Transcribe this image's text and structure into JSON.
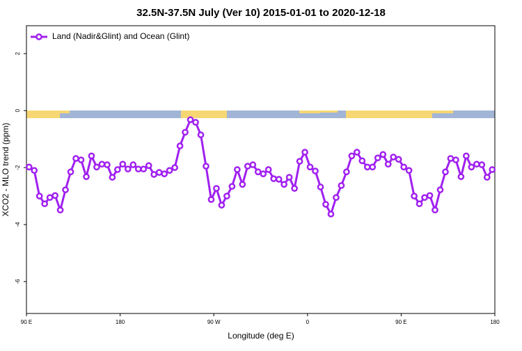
{
  "chart_data": {
    "type": "line",
    "title": "32.5N-37.5N July (Ver 10)   2015-01-01 to 2020-12-18",
    "xlabel": "Longitude (deg E)",
    "ylabel": "XCO2 - MLO trend (ppm)",
    "xlim": [
      90,
      540
    ],
    "xticks": [
      {
        "value": 90,
        "label": "90 E"
      },
      180,
      {
        "value": 270,
        "label": "90 W"
      },
      {
        "value": 360,
        "label": "0"
      },
      {
        "value": 450,
        "label": "90 E"
      },
      {
        "value": 540,
        "label": "180"
      }
    ],
    "ylim": [
      -7.12,
      2.98
    ],
    "yticks": [
      -6,
      -4,
      -2,
      0,
      2
    ],
    "legend": "top-left",
    "x": [
      92.5,
      97.5,
      102.5,
      107.5,
      112.5,
      117.5,
      122.5,
      127.5,
      132.5,
      137.5,
      142.5,
      147.5,
      152.5,
      157.5,
      162.5,
      167.5,
      172.5,
      177.5,
      182.5,
      187.5,
      192.5,
      197.5,
      202.5,
      207.5,
      212.5,
      217.5,
      222.5,
      227.5,
      232.5,
      237.5,
      242.5,
      247.5,
      252.5,
      257.5,
      262.5,
      267.5,
      272.5,
      277.5,
      282.5,
      287.5,
      292.5,
      297.5,
      302.5,
      307.5,
      312.5,
      317.5,
      322.5,
      327.5,
      332.5,
      337.5,
      342.5,
      347.5,
      352.5,
      357.5,
      362.5,
      367.5,
      372.5,
      377.5,
      382.5,
      387.5,
      392.5,
      397.5,
      402.5,
      407.5,
      412.5,
      417.5,
      422.5,
      427.5,
      432.5,
      437.5,
      442.5,
      447.5,
      452.5,
      457.5,
      462.5,
      467.5,
      472.5,
      477.5,
      482.5,
      487.5,
      492.5,
      497.5,
      502.5,
      507.5,
      512.5,
      517.5,
      522.5,
      527.5,
      532.5,
      537.5
    ],
    "series": [
      {
        "name": "Land (Nadir&Glint) and Ocean (Glint)",
        "color": "#a020f0",
        "values": [
          -1.98,
          -2.1,
          -3.0,
          -3.27,
          -3.05,
          -2.98,
          -3.49,
          -2.78,
          -2.15,
          -1.68,
          -1.73,
          -2.32,
          -1.59,
          -1.98,
          -1.88,
          -1.9,
          -2.34,
          -2.07,
          -1.88,
          -2.05,
          -1.9,
          -2.05,
          -2.05,
          -1.93,
          -2.24,
          -2.17,
          -2.22,
          -2.1,
          -2.0,
          -1.24,
          -0.76,
          -0.32,
          -0.41,
          -0.85,
          -1.95,
          -3.12,
          -2.73,
          -3.32,
          -3.0,
          -2.66,
          -2.07,
          -2.59,
          -1.95,
          -1.9,
          -2.15,
          -2.22,
          -2.07,
          -2.39,
          -2.41,
          -2.59,
          -2.34,
          -2.73,
          -1.78,
          -1.46,
          -1.98,
          -2.12,
          -2.68,
          -3.29,
          -3.63,
          -3.05,
          -2.63,
          -2.15,
          -1.59,
          -1.46,
          -1.76,
          -1.98,
          -1.98,
          -1.66,
          -1.54,
          -1.88,
          -1.63,
          -1.71,
          -1.98,
          -2.1,
          -3.0,
          -3.27,
          -3.05,
          -2.98,
          -3.49,
          -2.78,
          -2.15,
          -1.68,
          -1.73,
          -2.32,
          -1.59,
          -1.98,
          -1.88,
          -1.9,
          -2.34,
          -2.07
        ]
      }
    ]
  }
}
